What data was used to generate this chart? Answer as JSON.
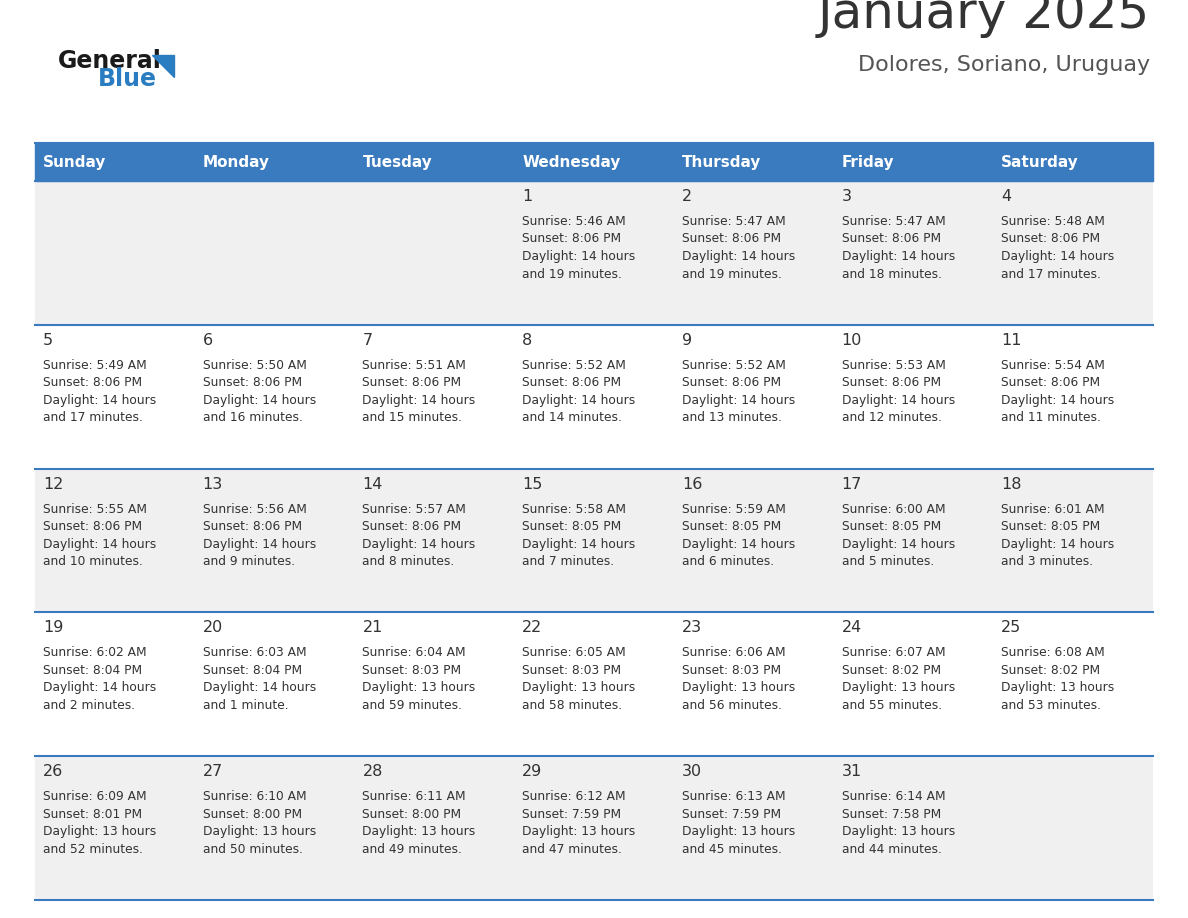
{
  "title": "January 2025",
  "subtitle": "Dolores, Soriano, Uruguay",
  "days_of_week": [
    "Sunday",
    "Monday",
    "Tuesday",
    "Wednesday",
    "Thursday",
    "Friday",
    "Saturday"
  ],
  "header_bg": "#3a7abf",
  "header_text": "#ffffff",
  "odd_row_bg": "#f0f0f0",
  "even_row_bg": "#ffffff",
  "cell_text_color": "#333333",
  "day_num_color": "#333333",
  "title_color": "#333333",
  "subtitle_color": "#555555",
  "logo_general_color": "#1a1a1a",
  "logo_blue_color": "#2a7dc0",
  "separator_color": "#3a7abf",
  "calendar_data": [
    [
      {
        "day": "",
        "sunrise": "",
        "sunset": "",
        "daylight_line1": "",
        "daylight_line2": ""
      },
      {
        "day": "",
        "sunrise": "",
        "sunset": "",
        "daylight_line1": "",
        "daylight_line2": ""
      },
      {
        "day": "",
        "sunrise": "",
        "sunset": "",
        "daylight_line1": "",
        "daylight_line2": ""
      },
      {
        "day": "1",
        "sunrise": "5:46 AM",
        "sunset": "8:06 PM",
        "daylight_line1": "Daylight: 14 hours",
        "daylight_line2": "and 19 minutes."
      },
      {
        "day": "2",
        "sunrise": "5:47 AM",
        "sunset": "8:06 PM",
        "daylight_line1": "Daylight: 14 hours",
        "daylight_line2": "and 19 minutes."
      },
      {
        "day": "3",
        "sunrise": "5:47 AM",
        "sunset": "8:06 PM",
        "daylight_line1": "Daylight: 14 hours",
        "daylight_line2": "and 18 minutes."
      },
      {
        "day": "4",
        "sunrise": "5:48 AM",
        "sunset": "8:06 PM",
        "daylight_line1": "Daylight: 14 hours",
        "daylight_line2": "and 17 minutes."
      }
    ],
    [
      {
        "day": "5",
        "sunrise": "5:49 AM",
        "sunset": "8:06 PM",
        "daylight_line1": "Daylight: 14 hours",
        "daylight_line2": "and 17 minutes."
      },
      {
        "day": "6",
        "sunrise": "5:50 AM",
        "sunset": "8:06 PM",
        "daylight_line1": "Daylight: 14 hours",
        "daylight_line2": "and 16 minutes."
      },
      {
        "day": "7",
        "sunrise": "5:51 AM",
        "sunset": "8:06 PM",
        "daylight_line1": "Daylight: 14 hours",
        "daylight_line2": "and 15 minutes."
      },
      {
        "day": "8",
        "sunrise": "5:52 AM",
        "sunset": "8:06 PM",
        "daylight_line1": "Daylight: 14 hours",
        "daylight_line2": "and 14 minutes."
      },
      {
        "day": "9",
        "sunrise": "5:52 AM",
        "sunset": "8:06 PM",
        "daylight_line1": "Daylight: 14 hours",
        "daylight_line2": "and 13 minutes."
      },
      {
        "day": "10",
        "sunrise": "5:53 AM",
        "sunset": "8:06 PM",
        "daylight_line1": "Daylight: 14 hours",
        "daylight_line2": "and 12 minutes."
      },
      {
        "day": "11",
        "sunrise": "5:54 AM",
        "sunset": "8:06 PM",
        "daylight_line1": "Daylight: 14 hours",
        "daylight_line2": "and 11 minutes."
      }
    ],
    [
      {
        "day": "12",
        "sunrise": "5:55 AM",
        "sunset": "8:06 PM",
        "daylight_line1": "Daylight: 14 hours",
        "daylight_line2": "and 10 minutes."
      },
      {
        "day": "13",
        "sunrise": "5:56 AM",
        "sunset": "8:06 PM",
        "daylight_line1": "Daylight: 14 hours",
        "daylight_line2": "and 9 minutes."
      },
      {
        "day": "14",
        "sunrise": "5:57 AM",
        "sunset": "8:06 PM",
        "daylight_line1": "Daylight: 14 hours",
        "daylight_line2": "and 8 minutes."
      },
      {
        "day": "15",
        "sunrise": "5:58 AM",
        "sunset": "8:05 PM",
        "daylight_line1": "Daylight: 14 hours",
        "daylight_line2": "and 7 minutes."
      },
      {
        "day": "16",
        "sunrise": "5:59 AM",
        "sunset": "8:05 PM",
        "daylight_line1": "Daylight: 14 hours",
        "daylight_line2": "and 6 minutes."
      },
      {
        "day": "17",
        "sunrise": "6:00 AM",
        "sunset": "8:05 PM",
        "daylight_line1": "Daylight: 14 hours",
        "daylight_line2": "and 5 minutes."
      },
      {
        "day": "18",
        "sunrise": "6:01 AM",
        "sunset": "8:05 PM",
        "daylight_line1": "Daylight: 14 hours",
        "daylight_line2": "and 3 minutes."
      }
    ],
    [
      {
        "day": "19",
        "sunrise": "6:02 AM",
        "sunset": "8:04 PM",
        "daylight_line1": "Daylight: 14 hours",
        "daylight_line2": "and 2 minutes."
      },
      {
        "day": "20",
        "sunrise": "6:03 AM",
        "sunset": "8:04 PM",
        "daylight_line1": "Daylight: 14 hours",
        "daylight_line2": "and 1 minute."
      },
      {
        "day": "21",
        "sunrise": "6:04 AM",
        "sunset": "8:03 PM",
        "daylight_line1": "Daylight: 13 hours",
        "daylight_line2": "and 59 minutes."
      },
      {
        "day": "22",
        "sunrise": "6:05 AM",
        "sunset": "8:03 PM",
        "daylight_line1": "Daylight: 13 hours",
        "daylight_line2": "and 58 minutes."
      },
      {
        "day": "23",
        "sunrise": "6:06 AM",
        "sunset": "8:03 PM",
        "daylight_line1": "Daylight: 13 hours",
        "daylight_line2": "and 56 minutes."
      },
      {
        "day": "24",
        "sunrise": "6:07 AM",
        "sunset": "8:02 PM",
        "daylight_line1": "Daylight: 13 hours",
        "daylight_line2": "and 55 minutes."
      },
      {
        "day": "25",
        "sunrise": "6:08 AM",
        "sunset": "8:02 PM",
        "daylight_line1": "Daylight: 13 hours",
        "daylight_line2": "and 53 minutes."
      }
    ],
    [
      {
        "day": "26",
        "sunrise": "6:09 AM",
        "sunset": "8:01 PM",
        "daylight_line1": "Daylight: 13 hours",
        "daylight_line2": "and 52 minutes."
      },
      {
        "day": "27",
        "sunrise": "6:10 AM",
        "sunset": "8:00 PM",
        "daylight_line1": "Daylight: 13 hours",
        "daylight_line2": "and 50 minutes."
      },
      {
        "day": "28",
        "sunrise": "6:11 AM",
        "sunset": "8:00 PM",
        "daylight_line1": "Daylight: 13 hours",
        "daylight_line2": "and 49 minutes."
      },
      {
        "day": "29",
        "sunrise": "6:12 AM",
        "sunset": "7:59 PM",
        "daylight_line1": "Daylight: 13 hours",
        "daylight_line2": "and 47 minutes."
      },
      {
        "day": "30",
        "sunrise": "6:13 AM",
        "sunset": "7:59 PM",
        "daylight_line1": "Daylight: 13 hours",
        "daylight_line2": "and 45 minutes."
      },
      {
        "day": "31",
        "sunrise": "6:14 AM",
        "sunset": "7:58 PM",
        "daylight_line1": "Daylight: 13 hours",
        "daylight_line2": "and 44 minutes."
      },
      {
        "day": "",
        "sunrise": "",
        "sunset": "",
        "daylight_line1": "",
        "daylight_line2": ""
      }
    ]
  ]
}
